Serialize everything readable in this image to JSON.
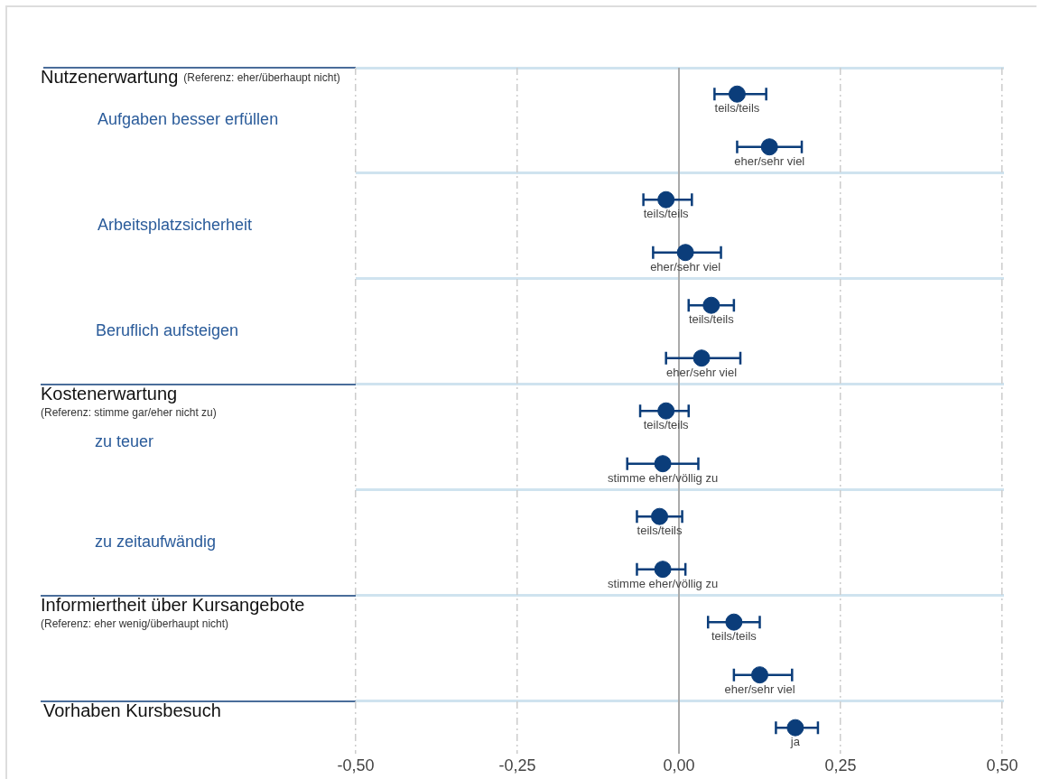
{
  "chart_data": {
    "type": "scatter",
    "orientation": "horizontal",
    "marker": "circle",
    "grid": "x",
    "tick_labels": "x",
    "legend": false,
    "categories": [
      "teils/teils",
      "eher/sehr viel",
      "teils/teils",
      "eher/sehr viel",
      "teils/teils",
      "eher/sehr viel",
      "teils/teils",
      "stimme eher/völlig zu",
      "teils/teils",
      "stimme eher/völlig zu",
      "teils/teils",
      "eher/sehr viel",
      "ja"
    ],
    "series": [
      {
        "color": "#0b3d7a",
        "values": [
          0.09,
          0.14,
          -0.02,
          0.01,
          0.05,
          0.035,
          -0.02,
          -0.025,
          -0.03,
          -0.025,
          0.085,
          0.125,
          0.18
        ],
        "errors": [
          [
            0.055,
            0.135
          ],
          [
            0.09,
            0.19
          ],
          [
            -0.055,
            0.02
          ],
          [
            -0.04,
            0.065
          ],
          [
            0.015,
            0.085
          ],
          [
            -0.02,
            0.095
          ],
          [
            -0.06,
            0.015
          ],
          [
            -0.08,
            0.03
          ],
          [
            -0.065,
            0.005
          ],
          [
            -0.065,
            0.01
          ],
          [
            0.045,
            0.125
          ],
          [
            0.085,
            0.175
          ],
          [
            0.15,
            0.215
          ]
        ]
      }
    ],
    "xlim": [
      -0.5,
      0.5
    ],
    "xticks": [
      {
        "value": -0.5,
        "label": "-0,50"
      },
      {
        "value": -0.25,
        "label": "-0,25"
      },
      {
        "value": 0,
        "label": "0,00"
      },
      {
        "value": 0.25,
        "label": "0,25"
      },
      {
        "value": 0.5,
        "label": "0,50"
      }
    ],
    "annotations": [
      "Nutzenerwartung",
      "(Referenz: eher/überhaupt nicht)",
      "Aufgaben besser erfüllen",
      "Arbeitsplatzsicherheit",
      "Beruflich aufsteigen",
      "Kostenerwartung",
      "(Referenz: stimme gar/eher nicht zu)",
      "zu teuer",
      "zu zeitaufwändig",
      "Informiertheit über Kursangebote",
      "(Referenz: eher wenig/überhaupt nicht)",
      "Vorhaben Kursbesuch"
    ]
  }
}
